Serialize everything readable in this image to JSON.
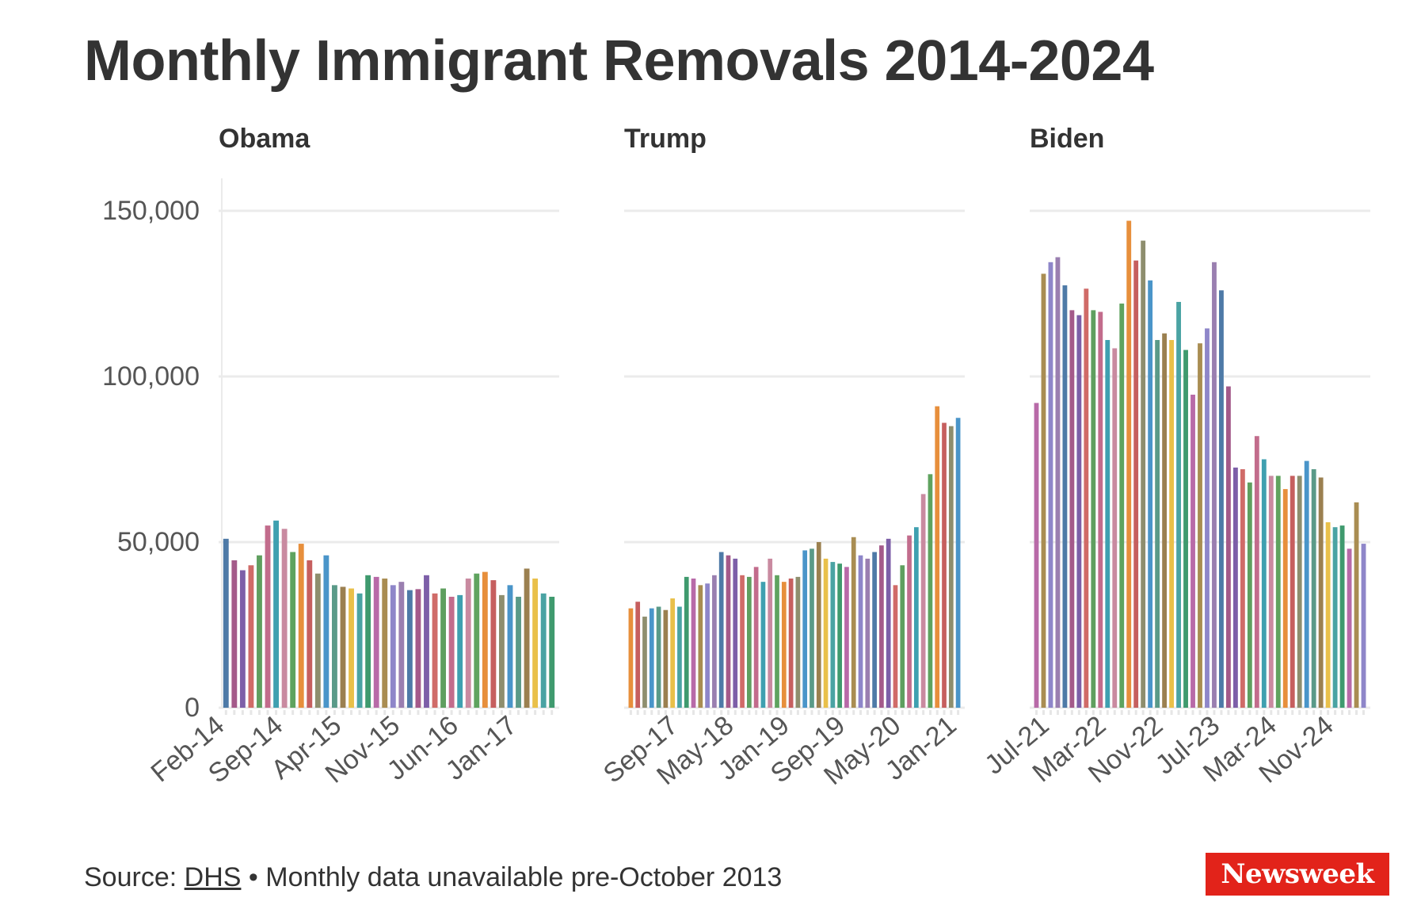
{
  "title": "Monthly Immigrant Removals 2014-2024",
  "footer": {
    "source_prefix": "Source:",
    "source_link": "DHS",
    "separator": "•",
    "note": "Monthly data unavailable pre-October 2013"
  },
  "logo": "Newsweek",
  "colors": {
    "gridline": "#ebebeb",
    "text": "#333333",
    "axis_text": "#555555",
    "brand": "#e2231a",
    "bar_palette": [
      "#4e7aa7",
      "#e9c04a",
      "#5fa35f",
      "#a45a8a",
      "#4aa3a3",
      "#e78f3c",
      "#7d5fa8",
      "#3f9a6e",
      "#c65f5f",
      "#d06b68",
      "#b86aa8",
      "#8e8e6e",
      "#5f9f5f",
      "#a98d52",
      "#4a95c9",
      "#c26c8c",
      "#8e86c9",
      "#5a9a88",
      "#3fa0b0",
      "#9a7fb0",
      "#9b8050",
      "#c98aa0"
    ]
  },
  "chart_data": [
    {
      "type": "bar",
      "title": "Obama",
      "ylim": [
        0,
        160000
      ],
      "yticks": [
        0,
        50000,
        100000,
        150000
      ],
      "ytick_labels": [
        "0",
        "50,000",
        "100,000",
        "150,000"
      ],
      "xtick_labels": [
        "Feb-14",
        "Sep-14",
        "Apr-15",
        "Nov-15",
        "Jun-16",
        "Jan-17"
      ],
      "xtick_indices": [
        0,
        7,
        14,
        21,
        28,
        35
      ],
      "grid": true,
      "values": [
        51000,
        44500,
        41500,
        43000,
        46000,
        55000,
        56500,
        54000,
        47000,
        49500,
        44500,
        40500,
        46000,
        37000,
        36500,
        36000,
        34500,
        40000,
        39500,
        39000,
        37000,
        38000,
        35500,
        35800,
        40000,
        34500,
        36000,
        33500,
        34000,
        39000,
        40500,
        41000,
        38500,
        34000,
        37000,
        33500,
        42000,
        39000,
        34500,
        33500
      ]
    },
    {
      "type": "bar",
      "title": "Trump",
      "ylim": [
        0,
        160000
      ],
      "yticks": [
        0,
        50000,
        100000,
        150000
      ],
      "grid": true,
      "xtick_labels": [
        "Sep-17",
        "May-18",
        "Jan-19",
        "Sep-19",
        "May-20",
        "Jan-21"
      ],
      "xtick_indices": [
        7,
        15,
        23,
        31,
        39,
        47
      ],
      "values": [
        30000,
        32000,
        27500,
        30000,
        30500,
        29500,
        33000,
        30500,
        39500,
        39000,
        37000,
        37500,
        40000,
        47000,
        46000,
        45000,
        40000,
        39500,
        42500,
        38000,
        45000,
        40000,
        38000,
        39000,
        39500,
        47500,
        48000,
        50000,
        45000,
        44000,
        43500,
        42500,
        51500,
        46000,
        45000,
        47000,
        49000,
        51000,
        37000,
        43000,
        52000,
        54500,
        64500,
        70500,
        91000,
        86000,
        85000,
        87500
      ]
    },
    {
      "type": "bar",
      "title": "Biden",
      "ylim": [
        0,
        160000
      ],
      "yticks": [
        0,
        50000,
        100000,
        150000
      ],
      "grid": true,
      "xtick_labels": [
        "Jul-21",
        "Mar-22",
        "Nov-22",
        "Jul-23",
        "Mar-24",
        "Nov-24"
      ],
      "xtick_indices": [
        2,
        10,
        18,
        26,
        34,
        42
      ],
      "values": [
        92000,
        131000,
        134500,
        136000,
        127500,
        120000,
        118500,
        126500,
        120000,
        119500,
        111000,
        108500,
        122000,
        147000,
        135000,
        141000,
        129000,
        111000,
        113000,
        111000,
        122500,
        108000,
        94500,
        110000,
        114500,
        134500,
        126000,
        97000,
        72500,
        72000,
        68000,
        82000,
        75000,
        70000,
        70000,
        66000,
        70000,
        70000,
        74500,
        72000,
        69500,
        56000,
        54500,
        55000,
        48000,
        62000,
        49500
      ]
    }
  ]
}
